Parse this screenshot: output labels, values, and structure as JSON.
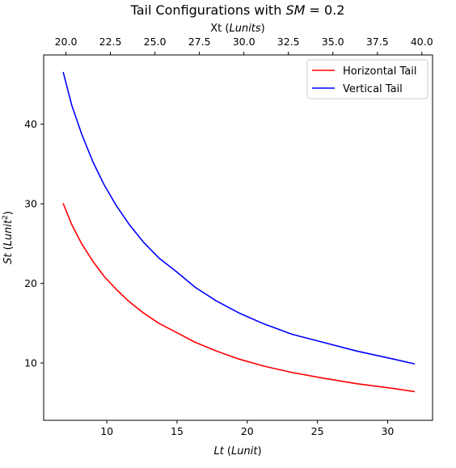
{
  "chart_data": {
    "type": "line",
    "title": "Tail Configurations with SM = 0.2",
    "title_parts": {
      "prefix": "Tail Configurations with ",
      "math": "SM",
      "suffix": " = 0.2"
    },
    "xlabel": "Lt (Lunit)",
    "xlabel_parts": {
      "math": "Lt",
      "rest": " (",
      "unit_math": "Lunit",
      "close": ")"
    },
    "ylabel": "St (Lunit^2)",
    "ylabel_parts": {
      "math": "St",
      "rest": " (",
      "unit_math": "Lunit",
      "sup": "2",
      "close": ")"
    },
    "top_xlabel": "Xt (Lunits)",
    "top_xlabel_parts": {
      "plain": "Xt (",
      "unit_math": "Lunits",
      "close": ")"
    },
    "xlim": [
      5.5,
      33.2
    ],
    "ylim": [
      2.8,
      48.7
    ],
    "top_xlim": [
      18.75,
      40.6
    ],
    "xticks": [
      10,
      15,
      20,
      25,
      30
    ],
    "yticks": [
      10,
      20,
      30,
      40
    ],
    "top_xticks": [
      20.0,
      22.5,
      25.0,
      27.5,
      30.0,
      32.5,
      35.0,
      37.5,
      40.0
    ],
    "top_xtick_labels": [
      "20.0",
      "22.5",
      "25.0",
      "27.5",
      "30.0",
      "32.5",
      "35.0",
      "37.5",
      "40.0"
    ],
    "legend_position": "top-right",
    "grid": false,
    "series": [
      {
        "name": "Horizontal Tail",
        "color": "#ff0000",
        "x": [
          6.9,
          7.5,
          8.2,
          9.0,
          9.8,
          10.7,
          11.6,
          12.6,
          13.7,
          15.0,
          16.3,
          17.8,
          19.4,
          21.2,
          23.2,
          25.4,
          27.8,
          30.4,
          31.9
        ],
        "y": [
          30.0,
          27.4,
          25.0,
          22.8,
          20.9,
          19.2,
          17.7,
          16.3,
          15.0,
          13.8,
          12.6,
          11.5,
          10.5,
          9.6,
          8.8,
          8.1,
          7.4,
          6.8,
          6.4
        ]
      },
      {
        "name": "Vertical Tail",
        "color": "#0000ff",
        "x": [
          6.9,
          7.5,
          8.2,
          9.0,
          9.8,
          10.7,
          11.6,
          12.6,
          13.7,
          15.0,
          16.3,
          17.8,
          19.4,
          21.2,
          23.2,
          25.4,
          27.8,
          30.4,
          31.9
        ],
        "y": [
          46.5,
          42.4,
          38.8,
          35.3,
          32.4,
          29.7,
          27.4,
          25.2,
          23.2,
          21.4,
          19.5,
          17.8,
          16.3,
          14.9,
          13.6,
          12.6,
          11.5,
          10.5,
          9.9
        ]
      }
    ]
  }
}
